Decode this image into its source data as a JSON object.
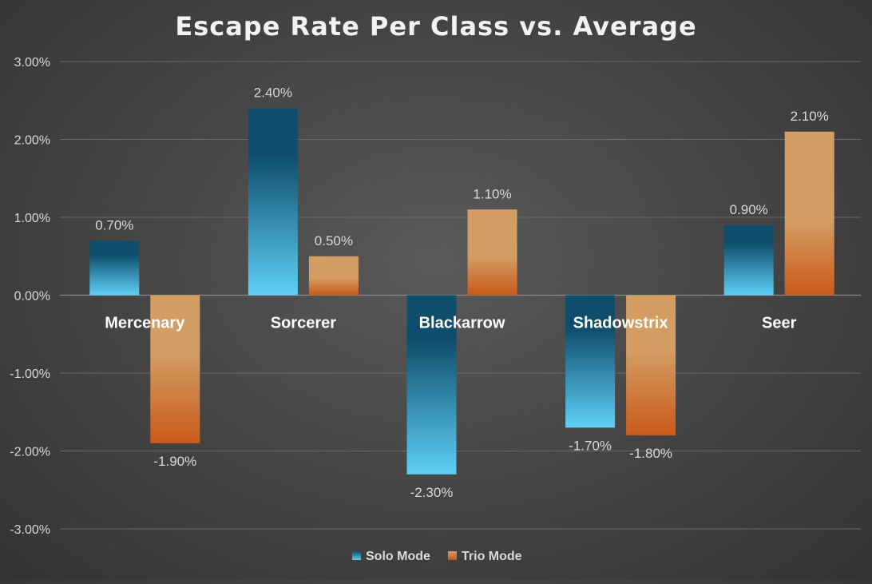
{
  "chart_data": {
    "type": "bar",
    "title": "Escape Rate Per Class vs. Average",
    "xlabel": "",
    "ylabel": "",
    "categories": [
      "Mercenary",
      "Sorcerer",
      "Blackarrow",
      "Shadowstrix",
      "Seer"
    ],
    "series": [
      {
        "name": "Solo Mode",
        "values": [
          0.7,
          2.4,
          -2.3,
          -1.7,
          0.9
        ],
        "labels": [
          "0.70%",
          "2.40%",
          "-2.30%",
          "-1.70%",
          "0.90%"
        ],
        "color_dark": "#0e4d6b",
        "color_light": "#5fd0f7"
      },
      {
        "name": "Trio Mode",
        "values": [
          -1.9,
          0.5,
          1.1,
          -1.8,
          2.1
        ],
        "labels": [
          "-1.90%",
          "0.50%",
          "1.10%",
          "-1.80%",
          "2.10%"
        ],
        "color_dark": "#c95a1a",
        "color_light": "#d39d63"
      }
    ],
    "ylim": [
      -3,
      3
    ],
    "yticks": [
      3,
      2,
      1,
      0,
      -1,
      -2,
      -3
    ],
    "ytick_labels": [
      "3.00%",
      "2.00%",
      "1.00%",
      "0.00%",
      "-1.00%",
      "-2.00%",
      "-3.00%"
    ],
    "grid": true,
    "legend_position": "bottom-center",
    "colors": {
      "gridline": "#6a6a6a",
      "axis_text": "#d9d9d9",
      "category_text": "#ffffff",
      "title_text": "#f2f2f2"
    }
  }
}
